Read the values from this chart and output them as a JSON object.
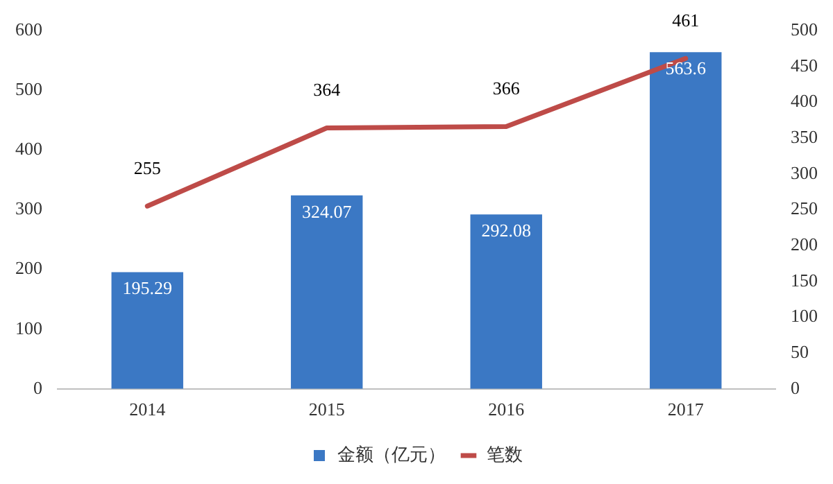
{
  "chart_data": {
    "type": "bar",
    "categories": [
      "2014",
      "2015",
      "2016",
      "2017"
    ],
    "series": [
      {
        "name": "金额（亿元）",
        "color": "#3b78c4",
        "values": [
          195.29,
          324.07,
          292.08,
          563.6
        ]
      },
      {
        "name": "笔数",
        "type": "line",
        "axis": "y2",
        "color": "#be4b48",
        "values": [
          255,
          364,
          366,
          461
        ]
      }
    ],
    "ylim": [
      0,
      600
    ],
    "yticks": [
      0,
      100,
      200,
      300,
      400,
      500,
      600
    ],
    "y2lim": [
      0,
      500
    ],
    "y2ticks": [
      0,
      50,
      100,
      150,
      200,
      250,
      300,
      350,
      400,
      450,
      500
    ],
    "grid": false,
    "legend": "bottom",
    "data_labels": true,
    "marker": "none",
    "line_style": "solid"
  }
}
